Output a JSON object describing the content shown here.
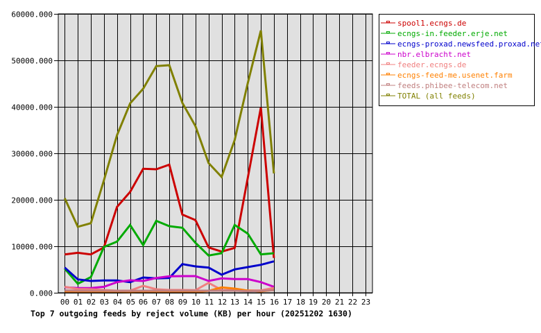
{
  "chart_data": {
    "type": "line",
    "title": "Top 7 outgoing feeds by reject volume (KB) per hour (20251202 1630)",
    "xlabel": "",
    "ylabel": "",
    "x": [
      "00",
      "01",
      "02",
      "03",
      "04",
      "05",
      "06",
      "07",
      "08",
      "09",
      "10",
      "11",
      "12",
      "13",
      "14",
      "15",
      "16",
      "17",
      "18",
      "19",
      "20",
      "21",
      "22",
      "23"
    ],
    "ylim": [
      0,
      60000
    ],
    "yticks": [
      "0.000",
      "10000.000",
      "20000.000",
      "30000.000",
      "40000.000",
      "50000.000",
      "60000.000"
    ],
    "ytick_values": [
      0,
      10000,
      20000,
      30000,
      40000,
      50000,
      60000
    ],
    "grid": true,
    "legend_position": "right-top",
    "series": [
      {
        "name": "spool1.ecngs.de",
        "color": "#cc0000",
        "values": [
          8250,
          8600,
          8250,
          9750,
          18460,
          21700,
          26670,
          26570,
          27570,
          16820,
          15630,
          9750,
          8850,
          9650,
          24670,
          39850,
          7500
        ]
      },
      {
        "name": "ecngs-in.feeder.erje.net",
        "color": "#00aa00",
        "values": [
          5180,
          1940,
          3380,
          9850,
          11000,
          14580,
          10250,
          15470,
          14330,
          13980,
          10750,
          8010,
          8510,
          14580,
          12730,
          8250,
          8510
        ]
      },
      {
        "name": "ecngs-proxad.newsfeed.proxad.net",
        "color": "#0000cc",
        "values": [
          5420,
          2880,
          2540,
          2640,
          2640,
          2290,
          3280,
          3090,
          3180,
          6170,
          5670,
          5420,
          3880,
          5030,
          5520,
          6020,
          6760
        ]
      },
      {
        "name": "nbr.elbracht.net",
        "color": "#cc00cc",
        "values": [
          1190,
          1000,
          1000,
          1290,
          2290,
          2690,
          2540,
          3180,
          3530,
          3580,
          3580,
          2540,
          3090,
          2940,
          2940,
          2290,
          1290
        ]
      },
      {
        "name": "feeder.ecngs.de",
        "color": "#f08080",
        "values": [
          1290,
          800,
          750,
          600,
          450,
          450,
          1490,
          750,
          600,
          600,
          550,
          2140,
          600,
          550,
          500,
          500,
          1040
        ]
      },
      {
        "name": "ecngs-feed-me.usenet.farm",
        "color": "#ff8000",
        "values": [
          200,
          200,
          150,
          150,
          150,
          100,
          200,
          150,
          150,
          150,
          200,
          400,
          1150,
          900,
          450,
          300,
          600
        ]
      },
      {
        "name": "feeds.phibee-telecom.net",
        "color": "#c08080",
        "values": [
          500,
          450,
          450,
          450,
          400,
          400,
          450,
          450,
          450,
          450,
          450,
          450,
          450,
          450,
          350,
          400,
          550
        ]
      },
      {
        "name": "TOTAL (all feeds)",
        "color": "#808000",
        "values": [
          20350,
          14200,
          14970,
          24200,
          33900,
          40750,
          43900,
          48760,
          48950,
          40850,
          35870,
          27910,
          24930,
          32880,
          45070,
          56420,
          25670
        ]
      }
    ]
  }
}
